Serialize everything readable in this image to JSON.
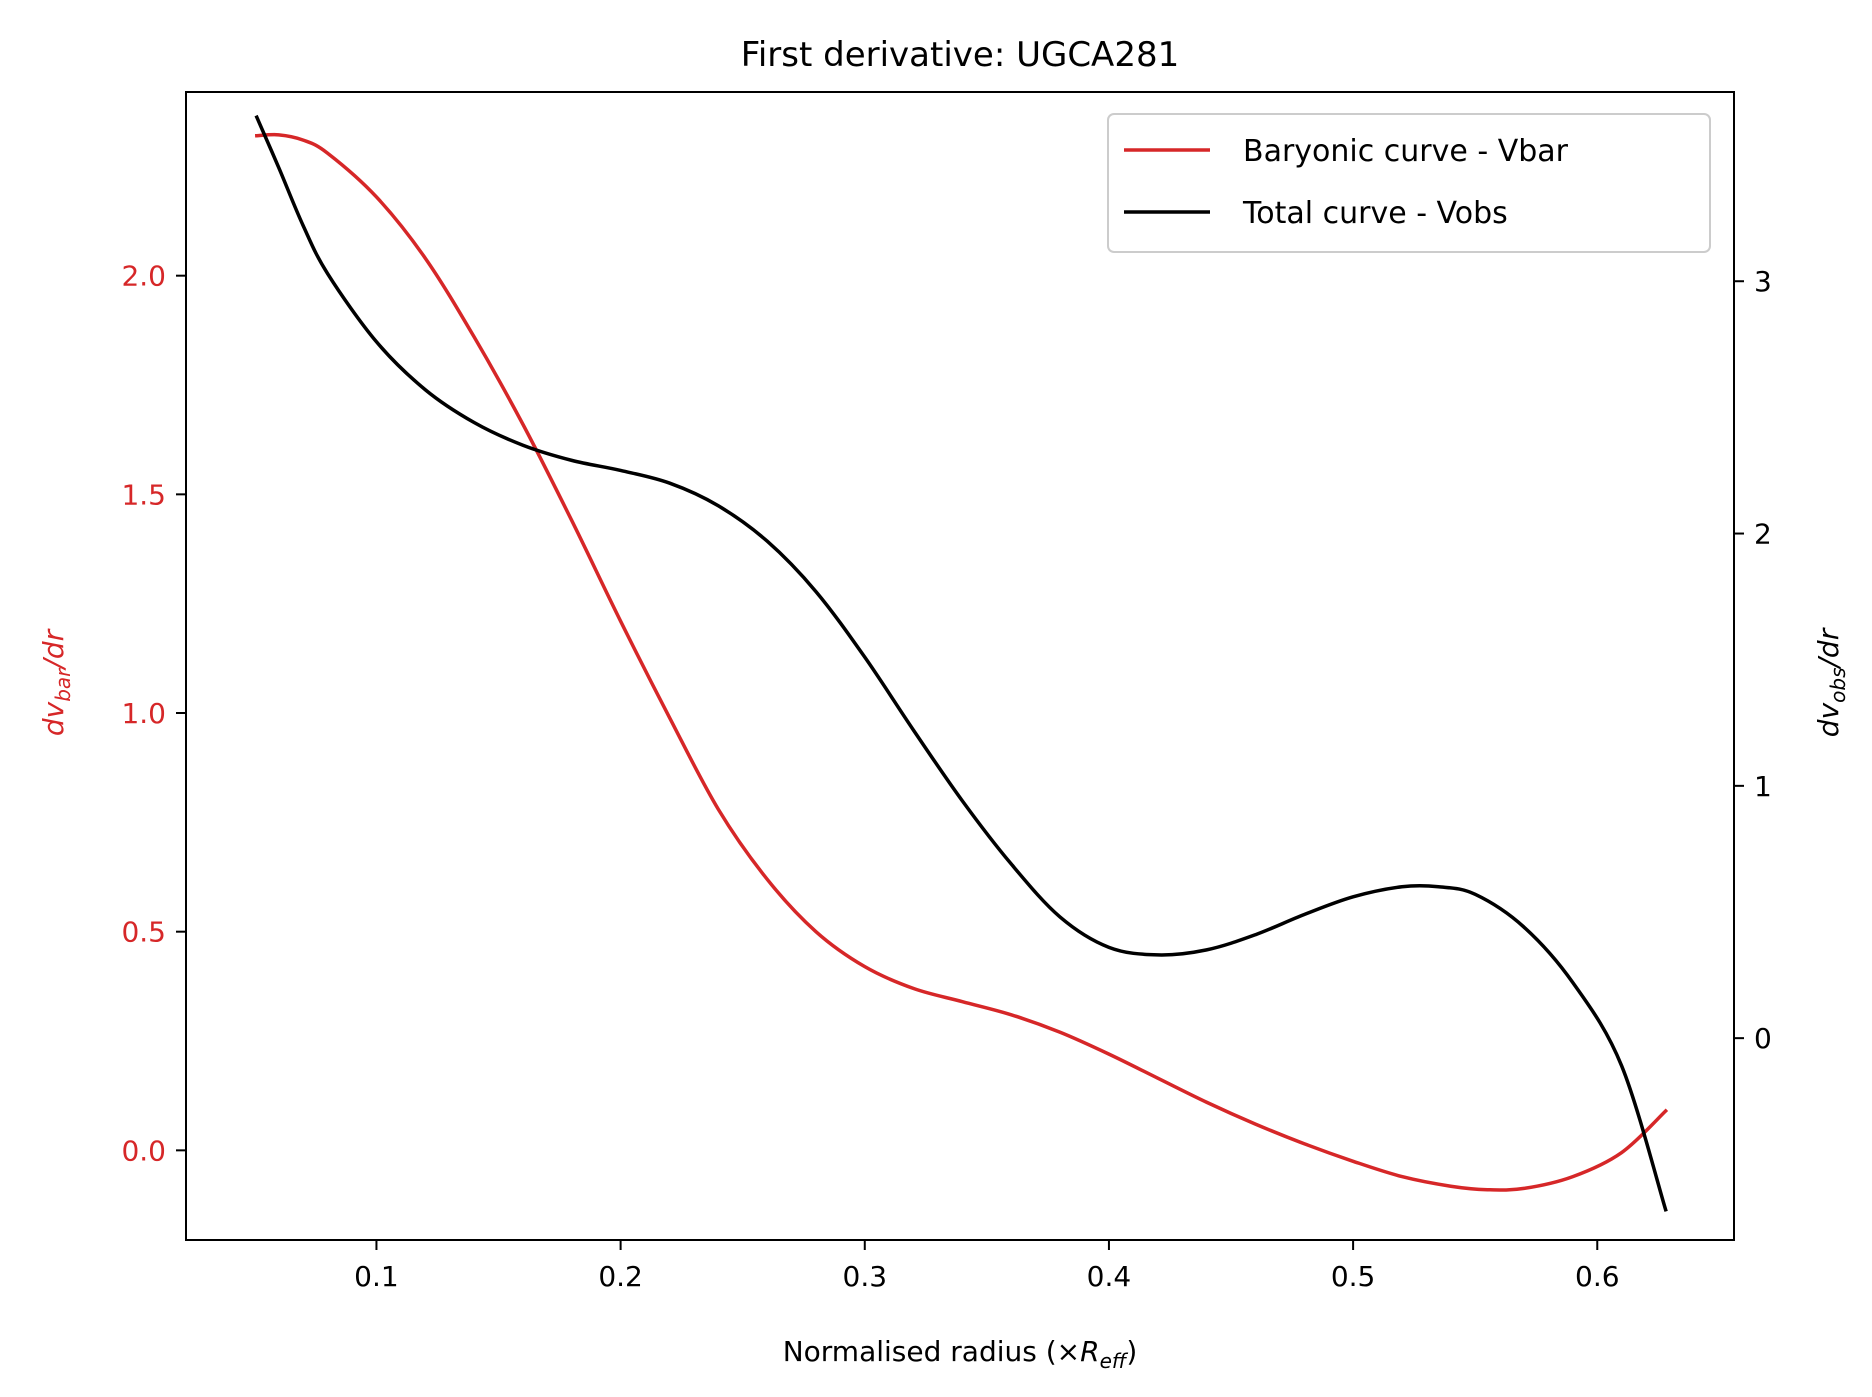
{
  "chart_data": {
    "type": "line",
    "title": "First derivative: UGCA281",
    "xlabel": {
      "main": "Normalised radius (×",
      "italic": "R",
      "sub": "eff",
      "close": ")"
    },
    "ylabel_left": {
      "pre": "dv",
      "sub": "bar",
      "post": "/dr",
      "color": "#d62728"
    },
    "ylabel_right": {
      "pre": "dv",
      "sub": "obs",
      "post": "/dr",
      "color": "#000000"
    },
    "xlim": [
      0.022,
      0.656
    ],
    "ylim_left": [
      -0.205,
      2.42
    ],
    "ylim_right": [
      -0.8,
      3.75
    ],
    "xticks": [
      0.1,
      0.2,
      0.3,
      0.4,
      0.5,
      0.6
    ],
    "xtick_labels": [
      "0.1",
      "0.2",
      "0.3",
      "0.4",
      "0.5",
      "0.6"
    ],
    "yticks_left": [
      0.0,
      0.5,
      1.0,
      1.5,
      2.0
    ],
    "ytick_labels_left": [
      "0.0",
      "0.5",
      "1.0",
      "1.5",
      "2.0"
    ],
    "yticks_right": [
      0,
      1,
      2,
      3
    ],
    "ytick_labels_right": [
      "0",
      "1",
      "2",
      "3"
    ],
    "legend_position": "top-right",
    "series": [
      {
        "name": "Baryonic curve - Vbar",
        "axis": "left",
        "color": "#d62728",
        "x": [
          0.051,
          0.06,
          0.07,
          0.08,
          0.1,
          0.12,
          0.14,
          0.16,
          0.18,
          0.2,
          0.22,
          0.24,
          0.26,
          0.28,
          0.3,
          0.32,
          0.34,
          0.36,
          0.38,
          0.4,
          0.42,
          0.44,
          0.46,
          0.48,
          0.5,
          0.52,
          0.54,
          0.555,
          0.57,
          0.59,
          0.61,
          0.628
        ],
        "y": [
          2.32,
          2.322,
          2.31,
          2.28,
          2.18,
          2.04,
          1.86,
          1.66,
          1.44,
          1.21,
          0.99,
          0.78,
          0.62,
          0.5,
          0.42,
          0.37,
          0.34,
          0.31,
          0.27,
          0.22,
          0.165,
          0.11,
          0.06,
          0.015,
          -0.025,
          -0.06,
          -0.082,
          -0.09,
          -0.087,
          -0.06,
          -0.005,
          0.09
        ]
      },
      {
        "name": "Total curve - Vobs",
        "axis": "right",
        "color": "#000000",
        "x": [
          0.051,
          0.06,
          0.07,
          0.08,
          0.1,
          0.12,
          0.14,
          0.16,
          0.18,
          0.2,
          0.22,
          0.24,
          0.26,
          0.28,
          0.3,
          0.32,
          0.34,
          0.36,
          0.38,
          0.4,
          0.42,
          0.44,
          0.46,
          0.48,
          0.5,
          0.52,
          0.535,
          0.55,
          0.57,
          0.59,
          0.61,
          0.628
        ],
        "y": [
          3.65,
          3.45,
          3.22,
          3.03,
          2.76,
          2.57,
          2.44,
          2.35,
          2.29,
          2.25,
          2.2,
          2.11,
          1.97,
          1.77,
          1.51,
          1.22,
          0.94,
          0.69,
          0.48,
          0.36,
          0.33,
          0.35,
          0.41,
          0.49,
          0.56,
          0.6,
          0.6,
          0.57,
          0.44,
          0.22,
          -0.11,
          -0.68
        ]
      }
    ]
  }
}
